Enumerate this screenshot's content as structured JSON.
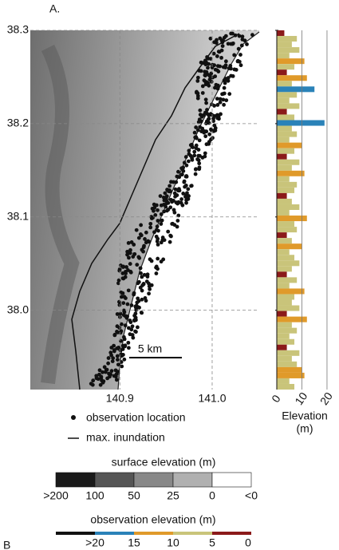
{
  "panel_label": "A.",
  "next_panel_label": "B",
  "map": {
    "latlim": [
      37.915,
      38.3
    ],
    "lonlim": [
      140.803,
      141.051
    ],
    "lat_ticks": [
      38.3,
      38.2,
      38.1,
      {
        "value": 38.0,
        "label": "38.0"
      }
    ],
    "lon_ticks": [
      140.9,
      {
        "value": 141.0,
        "label": "141.0"
      }
    ],
    "scale_bar": "5 km"
  },
  "profile": {
    "xlim": [
      0,
      21.6
    ],
    "xticks": [
      0,
      10,
      20
    ],
    "xlabel": "Elevation",
    "xunit": "(m)",
    "values": [
      3,
      8,
      6,
      9,
      5,
      11,
      7,
      4,
      12,
      6,
      15,
      8,
      5,
      9,
      4,
      7,
      19,
      6,
      8,
      5,
      10,
      7,
      4,
      9,
      6,
      11,
      5,
      8,
      7,
      4,
      6,
      9,
      5,
      12,
      7,
      8,
      4,
      6,
      10,
      5,
      7,
      9,
      6,
      4,
      8,
      5,
      11,
      7,
      6,
      9,
      4,
      12,
      6,
      8,
      5,
      7,
      4,
      9,
      6,
      8,
      10,
      11,
      5,
      7
    ]
  },
  "legend": {
    "points": "observation location",
    "line": "max. inundation"
  },
  "surface_legend": {
    "title": "surface elevation (m)",
    "labels": [
      ">200",
      "100",
      "50",
      "25",
      "0",
      "<0"
    ],
    "colors": [
      "#1a1a1a",
      "#555",
      "#888",
      "#b0b0b0",
      "#fff"
    ]
  },
  "obs_legend": {
    "title": "observation elevation (m)",
    "ticks": [
      {
        "value": 20,
        "label": ">20"
      },
      15,
      10,
      5,
      0
    ],
    "colors": [
      "#111",
      "#2a82b8",
      "#e09a2a",
      "#c9c47a",
      "#8b1a1a"
    ]
  }
}
